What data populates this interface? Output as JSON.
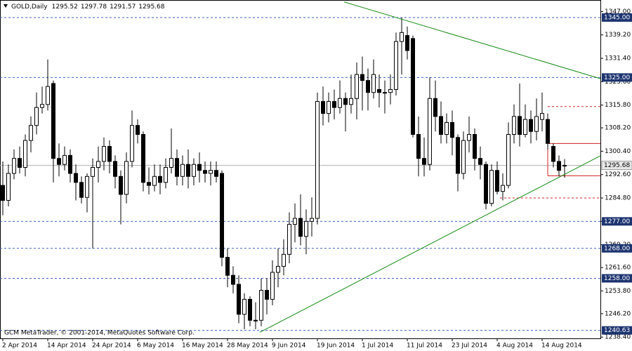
{
  "chart_data": {
    "type": "candlestick",
    "title": "GOLD,Daily",
    "footer": "GCM MetaTrader, © 2001-2014, MetaQuotes Software Corp.",
    "categories": [
      "2 Apr 2014",
      null,
      null,
      null,
      null,
      null,
      null,
      null,
      "14 Apr 2014",
      null,
      null,
      null,
      null,
      null,
      null,
      null,
      "24 Apr 2014",
      null,
      null,
      null,
      null,
      null,
      null,
      null,
      "6 May 2014",
      null,
      null,
      null,
      null,
      null,
      null,
      null,
      "16 May 2014",
      null,
      null,
      null,
      null,
      null,
      null,
      null,
      "28 May 2014",
      null,
      null,
      null,
      null,
      null,
      null,
      null,
      "9 Jun 2014",
      null,
      null,
      null,
      null,
      null,
      null,
      null,
      "19 Jun 2014",
      null,
      null,
      null,
      null,
      null,
      null,
      null,
      "1 Jul 2014",
      null,
      null,
      null,
      null,
      null,
      null,
      null,
      "11 Jul 2014",
      null,
      null,
      null,
      null,
      null,
      null,
      null,
      "23 Jul 2014",
      null,
      null,
      null,
      null,
      null,
      null,
      null,
      "4 Aug 2014",
      null,
      null,
      null,
      null,
      null,
      null,
      null,
      "14 Aug 2014",
      null,
      null,
      null,
      null
    ],
    "open": [
      1289,
      1284,
      1293,
      1298,
      1295,
      1304,
      1309,
      1315,
      1316,
      1323,
      1298,
      1296,
      1299,
      1293,
      1290,
      1285,
      1292,
      1295,
      1297,
      1302,
      1297,
      1292,
      1286,
      1297,
      1309,
      1306,
      1290,
      1289,
      1292,
      1290,
      1295,
      1298,
      1292,
      1296,
      1292,
      1296,
      1294,
      1293,
      1294,
      1293,
      1265,
      1259,
      1256,
      1246,
      1251,
      1244,
      1244,
      1254,
      1251,
      1260,
      1262,
      1266,
      1276,
      1278,
      1272,
      1277,
      1278,
      1317,
      1313,
      1317,
      1315,
      1318,
      1316,
      1318,
      1326,
      1324,
      1320,
      1321,
      1320,
      1320,
      1321,
      1337,
      1339,
      1338,
      1306,
      1298,
      1296,
      1318,
      1312,
      1306,
      1310,
      1305,
      1293,
      1304,
      1306,
      1298,
      1296,
      1283,
      1294,
      1287,
      1289,
      1306,
      1312,
      1306,
      1311,
      1307,
      1311,
      1311,
      1302,
      1297,
      1295.52
    ],
    "high": [
      1297,
      1296,
      1301,
      1302,
      1306,
      1312,
      1320,
      1322,
      1331,
      1324,
      1303,
      1302,
      1301,
      1296,
      1292,
      1293,
      1298,
      1302,
      1305,
      1304,
      1299,
      1294,
      1300,
      1314,
      1311,
      1307,
      1295,
      1296,
      1296,
      1298,
      1308,
      1301,
      1299,
      1301,
      1298,
      1300,
      1297,
      1297,
      1297,
      1294,
      1268,
      1262,
      1259,
      1253,
      1252,
      1250,
      1258,
      1258,
      1264,
      1268,
      1271,
      1280,
      1283,
      1286,
      1281,
      1285,
      1320,
      1322,
      1320,
      1321,
      1324,
      1320,
      1326,
      1330,
      1332,
      1328,
      1331,
      1326,
      1324,
      1326,
      1340,
      1345,
      1342,
      1339,
      1312,
      1305,
      1325,
      1324,
      1317,
      1313,
      1314,
      1306,
      1307,
      1312,
      1308,
      1302,
      1297,
      1296,
      1297,
      1293,
      1310,
      1316,
      1323,
      1316,
      1314,
      1318,
      1320,
      1313,
      1303,
      1299,
      1297.78
    ],
    "low": [
      1279,
      1282,
      1291,
      1293,
      1292,
      1300,
      1306,
      1313,
      1314,
      1290,
      1292,
      1294,
      1290,
      1284,
      1283,
      1280,
      1268,
      1290,
      1294,
      1293,
      1288,
      1276,
      1283,
      1295,
      1303,
      1287,
      1286,
      1287,
      1286,
      1288,
      1293,
      1289,
      1289,
      1288,
      1289,
      1290,
      1290,
      1289,
      1290,
      1262,
      1255,
      1253,
      1243,
      1241,
      1242,
      1241,
      1242,
      1246,
      1249,
      1255,
      1259,
      1263,
      1270,
      1269,
      1266,
      1272,
      1276,
      1309,
      1310,
      1311,
      1313,
      1307,
      1313,
      1311,
      1314,
      1314,
      1318,
      1315,
      1313,
      1316,
      1319,
      1326,
      1331,
      1305,
      1292,
      1292,
      1294,
      1307,
      1303,
      1303,
      1299,
      1287,
      1291,
      1300,
      1294,
      1291,
      1281,
      1282,
      1286,
      1284,
      1288,
      1303,
      1302,
      1305,
      1303,
      1304,
      1307,
      1301,
      1295,
      1292,
      1291.57
    ],
    "close": [
      1284,
      1293,
      1298,
      1295,
      1304,
      1309,
      1315,
      1316,
      1322,
      1298,
      1296,
      1299,
      1293,
      1290,
      1285,
      1292,
      1295,
      1297,
      1302,
      1297,
      1292,
      1286,
      1297,
      1309,
      1306,
      1290,
      1289,
      1292,
      1290,
      1295,
      1298,
      1292,
      1296,
      1292,
      1296,
      1294,
      1293,
      1294,
      1292,
      1265,
      1259,
      1256,
      1246,
      1251,
      1244,
      1244,
      1254,
      1251,
      1260,
      1262,
      1266,
      1276,
      1278,
      1272,
      1277,
      1278,
      1317,
      1313,
      1317,
      1315,
      1318,
      1316,
      1318,
      1326,
      1324,
      1320,
      1326,
      1320,
      1320,
      1321,
      1337,
      1340,
      1334,
      1306,
      1298,
      1296,
      1318,
      1312,
      1306,
      1310,
      1305,
      1293,
      1304,
      1306,
      1298,
      1296,
      1283,
      1294,
      1287,
      1289,
      1306,
      1312,
      1306,
      1311,
      1307,
      1312,
      1313,
      1303,
      1297,
      1294,
      1295.68
    ],
    "xlim": [
      -0.5,
      106.375
    ],
    "ylim": [
      1237.97,
      1350.85
    ],
    "yticks": [
      {
        "value": 1347,
        "label": "1347.00"
      },
      {
        "value": 1339.2,
        "label": "1339.20"
      },
      {
        "value": 1331.4,
        "label": "1331.40"
      },
      {
        "value": 1323.6,
        "label": "1323.60"
      },
      {
        "value": 1315.8,
        "label": "1315.80"
      },
      {
        "value": 1308.2,
        "label": "1308.20"
      },
      {
        "value": 1300.4,
        "label": "1300.40"
      },
      {
        "value": 1292.6,
        "label": "1292.60"
      },
      {
        "value": 1284.8,
        "label": "1284.80"
      },
      {
        "value": 1277,
        "label": "1277.00"
      },
      {
        "value": 1269.2,
        "label": "1269.20"
      },
      {
        "value": 1261.6,
        "label": "1261.60"
      },
      {
        "value": 1253.8,
        "label": "1253.80"
      },
      {
        "value": 1246.2,
        "label": "1246.20"
      },
      {
        "value": 1238.4,
        "label": "1238.40"
      }
    ],
    "levels": [
      {
        "value": 1345,
        "label": "1345.00"
      },
      {
        "value": 1325,
        "label": "1325.00"
      },
      {
        "value": 1277,
        "label": "1277.00"
      },
      {
        "value": 1268,
        "label": "1268.00"
      },
      {
        "value": 1258,
        "label": "1258.00"
      },
      {
        "value": 1240.63,
        "label": "1240.63"
      }
    ],
    "level_color": "#3f5fbf",
    "red_dashed": [
      1315.3,
      1284.8
    ],
    "red_solid": [
      1303,
      1292.2
    ],
    "red_color": "#d02020",
    "trendlines": [
      {
        "x": [
          60.75,
          106.4
        ],
        "y": [
          1350.2,
          1324.6
        ]
      },
      {
        "x": [
          45.75,
          106.4
        ],
        "y": [
          1240.0,
          1298.9
        ]
      }
    ],
    "trend_color": "#138a13"
  }
}
